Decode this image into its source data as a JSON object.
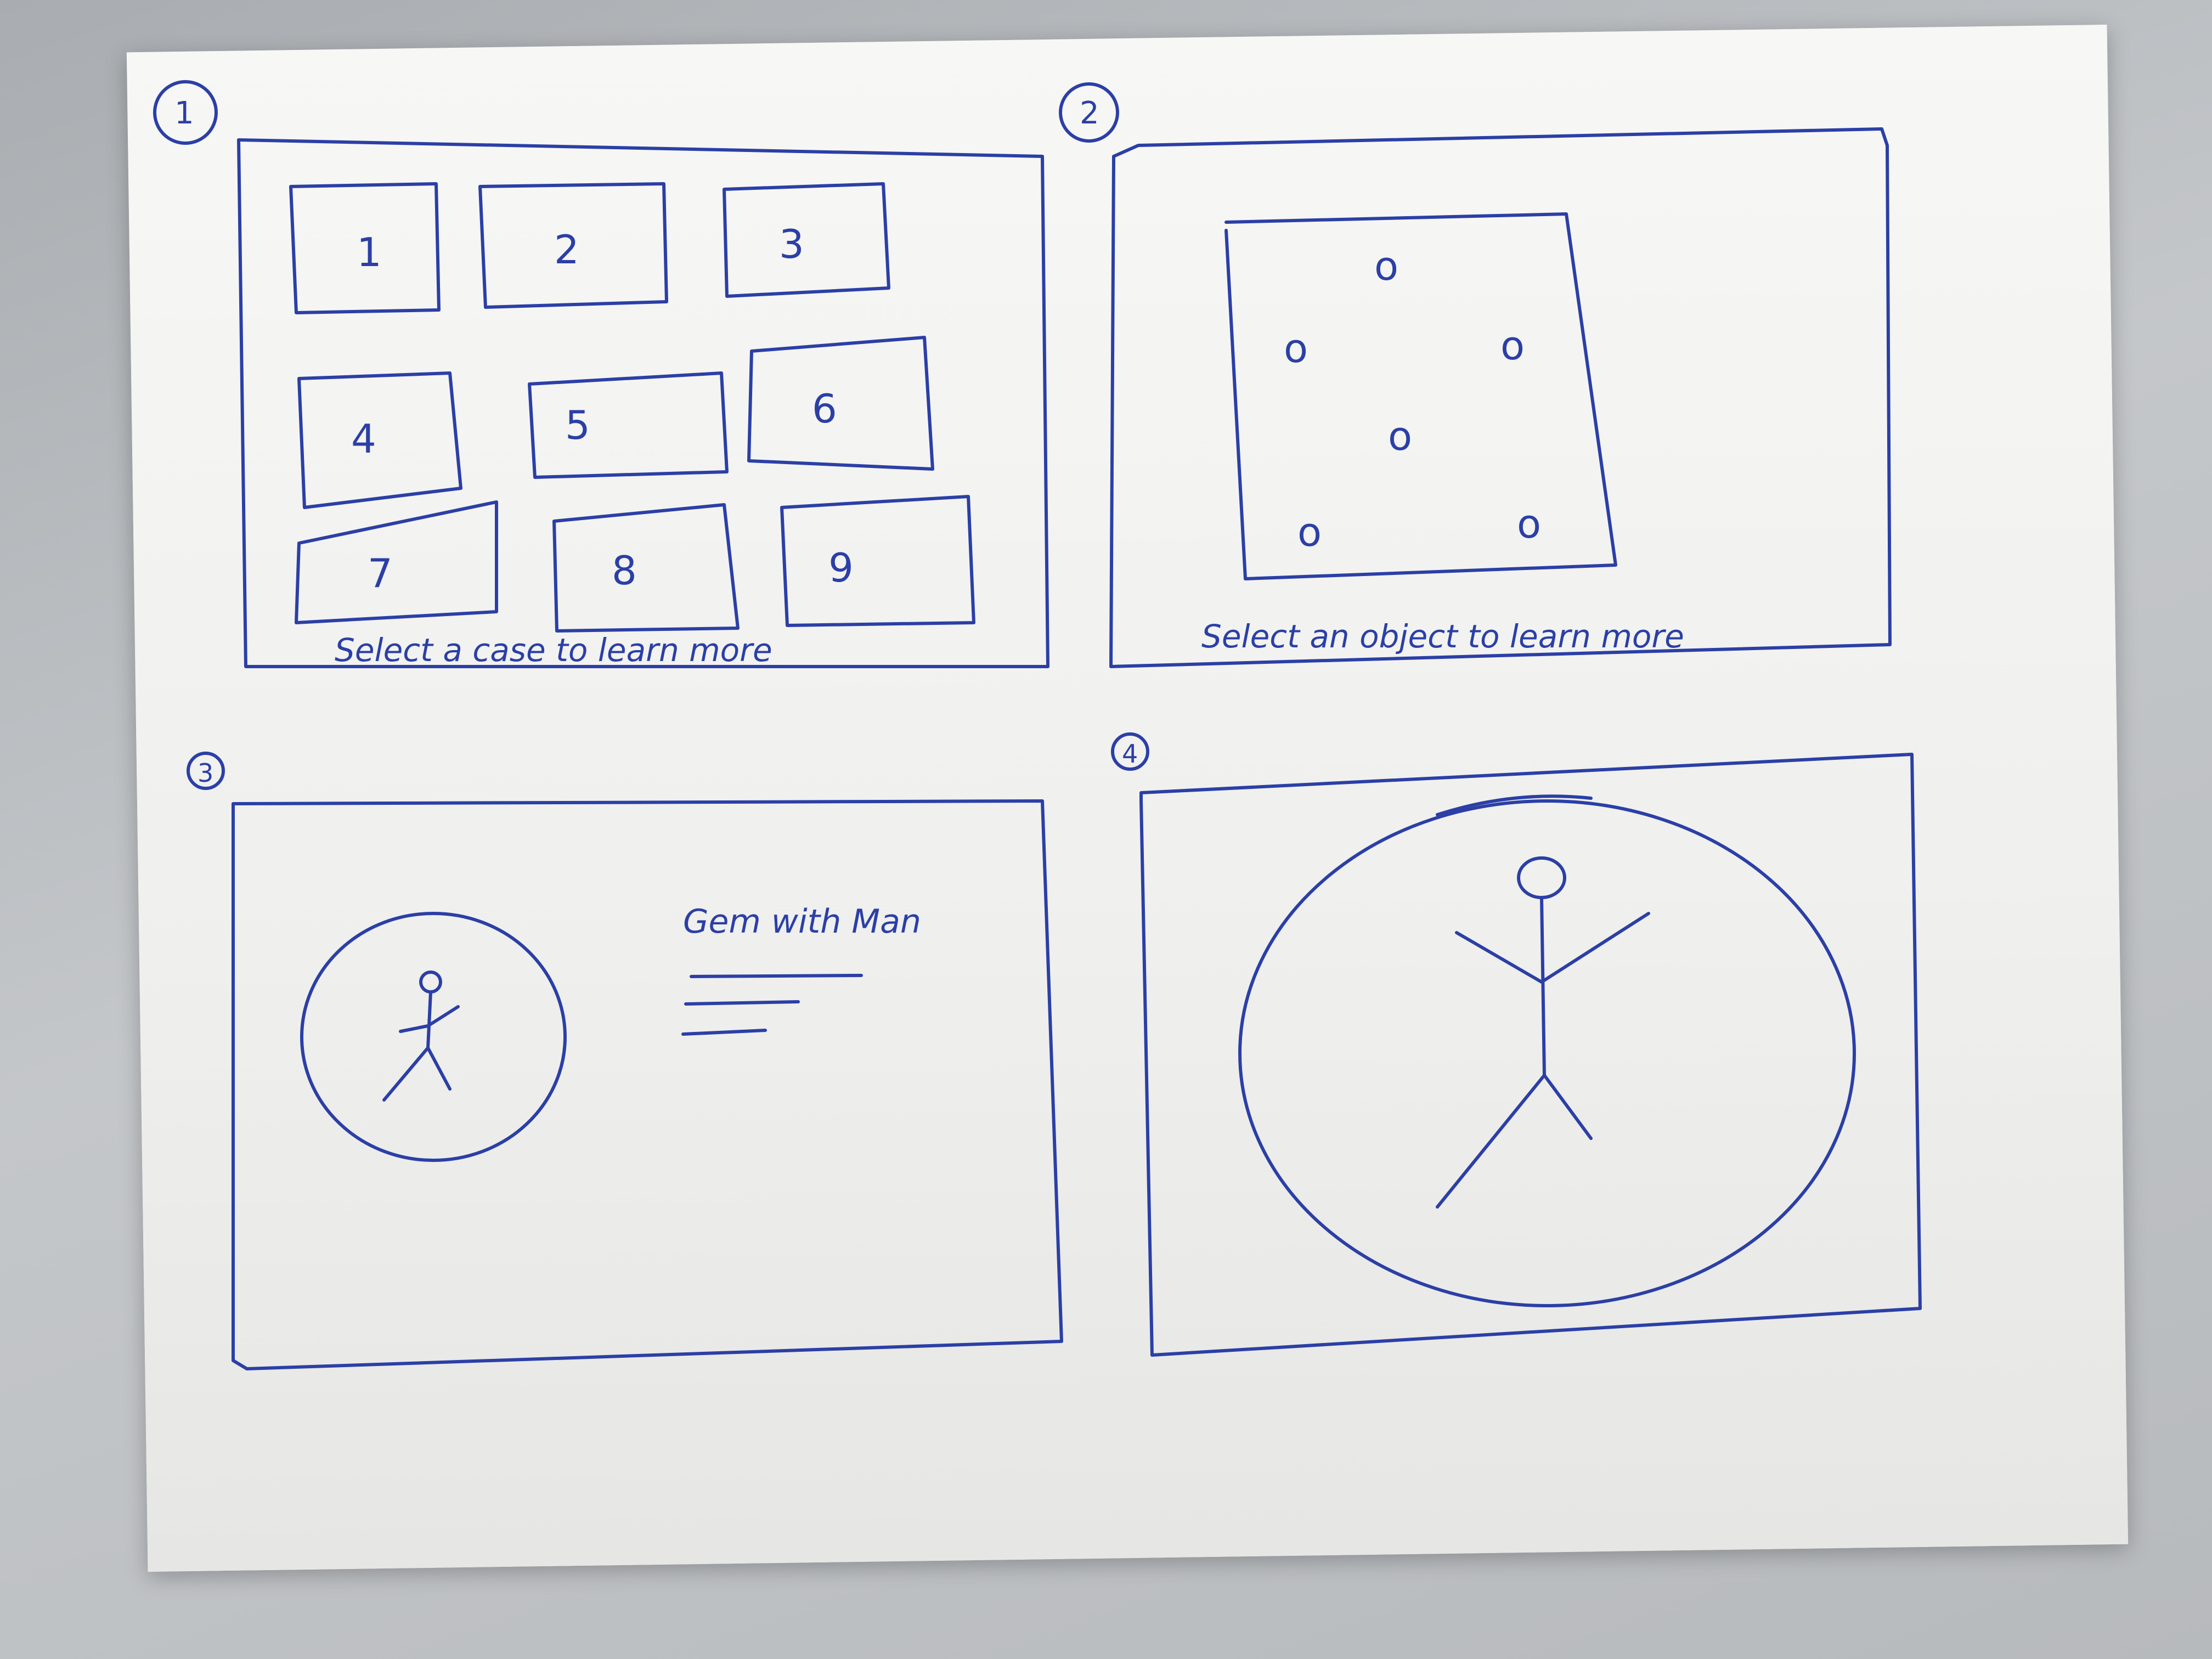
{
  "panels": [
    {
      "number": "1",
      "tiles": [
        "1",
        "2",
        "3",
        "4",
        "5",
        "6",
        "7",
        "8",
        "9"
      ],
      "caption": "Select a case to learn more"
    },
    {
      "number": "2",
      "object_markers": [
        "o",
        "o",
        "o",
        "o",
        "o",
        "o"
      ],
      "caption": "Select an object to learn more"
    },
    {
      "number": "3",
      "title": "Gem with Man"
    },
    {
      "number": "4"
    }
  ],
  "colors": {
    "ink": "#2b3fa6",
    "paper": "#f3f3f1",
    "background": "#b8bbbe"
  }
}
